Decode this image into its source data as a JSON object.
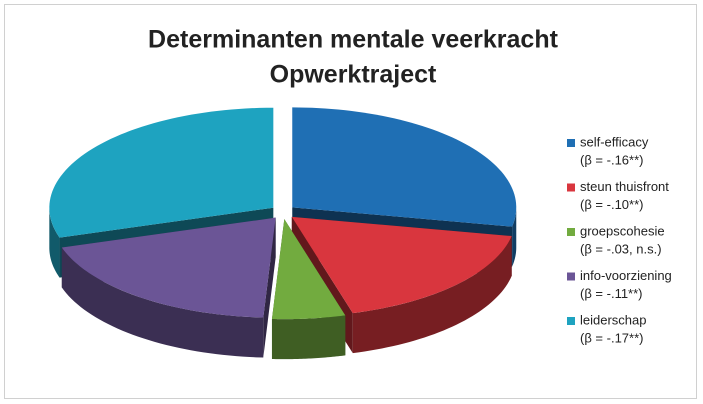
{
  "chart_data": {
    "type": "pie3d",
    "title": [
      "Determinanten mentale veerkracht",
      "Opwerktraject"
    ],
    "categories": [
      "self-efficacy",
      "steun thuisfront",
      "groepscohesie",
      "info-voorziening",
      "leiderschap"
    ],
    "legend_notes": [
      "(β = -.16**)",
      "(β = -.10**)",
      "(β = -.03, n.s.)",
      "(β = -.11**)",
      "(β = -.17**)"
    ],
    "values": [
      16,
      10,
      3,
      11,
      17
    ],
    "colors": [
      "#1f6fb4",
      "#d9363e",
      "#72ab3f",
      "#6b5596",
      "#1ea3c0"
    ]
  }
}
